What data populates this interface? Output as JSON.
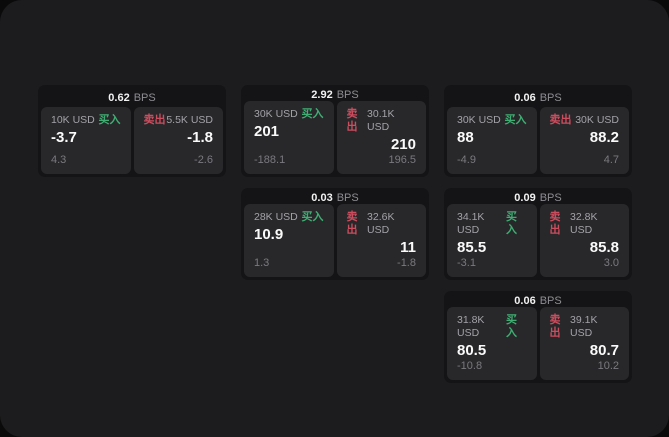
{
  "labels": {
    "bps_unit": "BPS",
    "buy": "买入",
    "sell": "卖出"
  },
  "colors": {
    "buy_accent": "#3fae73",
    "sell_accent": "#cc4d5e",
    "panel_background": "#1c1c1e",
    "card_background": "#141416",
    "tile_background": "#28282b",
    "price_text": "#fafafa",
    "muted_text": "#7a7a7f"
  },
  "cards": [
    {
      "bps": "0.62",
      "buy": {
        "amount": "10K USD",
        "price": "-3.7",
        "delta": "4.3"
      },
      "sell": {
        "amount": "5.5K USD",
        "price": "-1.8",
        "delta": "-2.6"
      }
    },
    {
      "bps": "2.92",
      "buy": {
        "amount": "30K USD",
        "price": "201",
        "delta": "-188.1"
      },
      "sell": {
        "amount": "30.1K USD",
        "price": "210",
        "delta": "196.5"
      }
    },
    {
      "bps": "0.06",
      "buy": {
        "amount": "30K USD",
        "price": "88",
        "delta": "-4.9"
      },
      "sell": {
        "amount": "30K USD",
        "price": "88.2",
        "delta": "4.7"
      }
    },
    {
      "bps": "0.03",
      "buy": {
        "amount": "28K USD",
        "price": "10.9",
        "delta": "1.3"
      },
      "sell": {
        "amount": "32.6K USD",
        "price": "11",
        "delta": "-1.8"
      }
    },
    {
      "bps": "0.09",
      "buy": {
        "amount": "34.1K USD",
        "price": "85.5",
        "delta": "-3.1"
      },
      "sell": {
        "amount": "32.8K USD",
        "price": "85.8",
        "delta": "3.0"
      }
    },
    {
      "bps": "0.06",
      "buy": {
        "amount": "31.8K USD",
        "price": "80.5",
        "delta": "-10.8"
      },
      "sell": {
        "amount": "39.1K USD",
        "price": "80.7",
        "delta": "10.2"
      }
    }
  ]
}
